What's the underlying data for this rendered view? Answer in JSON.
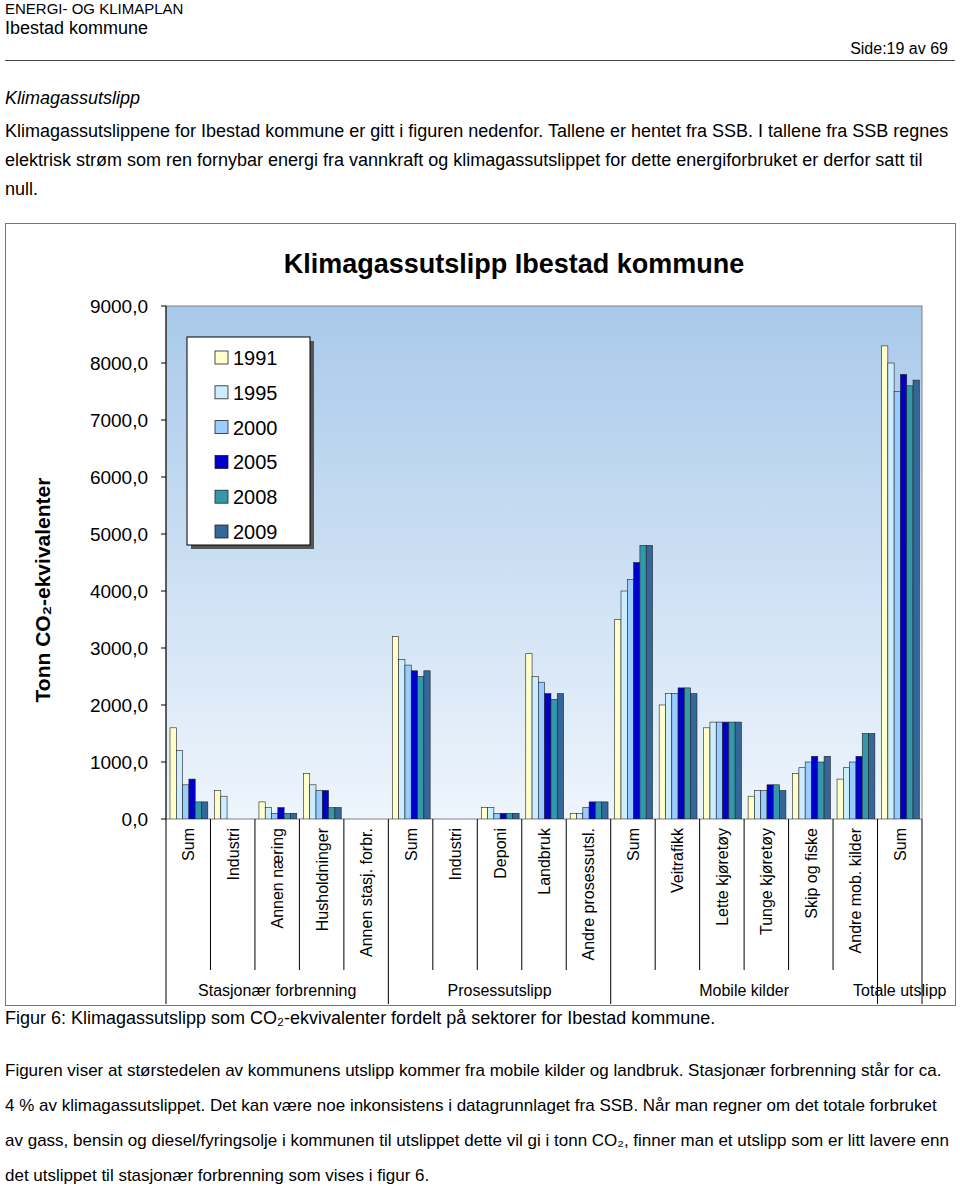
{
  "header": {
    "doc_title": "ENERGI- OG KLIMAPLAN",
    "org": "Ibestad kommune",
    "page": "Side:19 av 69"
  },
  "section": {
    "heading": "Klimagassutslipp",
    "intro": "Klimagassutslippene for Ibestad kommune er gitt i figuren nedenfor. Tallene er hentet fra SSB. I tallene fra SSB regnes elektrisk strøm som ren fornybar energi fra vannkraft og klimagassutslippet for dette energiforbruket er derfor satt til null."
  },
  "chart_data": {
    "type": "bar",
    "title": "Klimagassutslipp Ibestad kommune",
    "y_label": "Tonn CO₂-ekvivalenter",
    "categories": [
      "Sum",
      "Industri",
      "Annen næring",
      "Husholdninger",
      "Annen stasj. forbr.",
      "Sum",
      "Industri",
      "Deponi",
      "Landbruk",
      "Andre prosessutsl.",
      "Sum",
      "Veitrafikk",
      "Lette kjøretøy",
      "Tunge kjøretøy",
      "Skip og fiske",
      "Andre mob. kilder",
      "Sum"
    ],
    "category_groups": [
      {
        "label": "Stasjonær forbrenning",
        "count": 5
      },
      {
        "label": "Prosessutslipp",
        "count": 5
      },
      {
        "label": "Mobile kilder",
        "count": 6
      },
      {
        "label": "Totale utslipp",
        "count": 1
      }
    ],
    "series": [
      {
        "name": "1991",
        "color": "#ffffcc",
        "values": [
          1600,
          500,
          300,
          800,
          0,
          3200,
          0,
          200,
          2900,
          100,
          3500,
          2000,
          1600,
          400,
          800,
          700,
          8300
        ]
      },
      {
        "name": "1995",
        "color": "#ccecff",
        "values": [
          1200,
          400,
          200,
          600,
          0,
          2800,
          0,
          200,
          2500,
          100,
          4000,
          2200,
          1700,
          500,
          900,
          900,
          8000
        ]
      },
      {
        "name": "2000",
        "color": "#99ccff",
        "values": [
          600,
          0,
          100,
          500,
          0,
          2700,
          0,
          100,
          2400,
          200,
          4200,
          2200,
          1700,
          500,
          1000,
          1000,
          7500
        ]
      },
      {
        "name": "2005",
        "color": "#0000cc",
        "values": [
          700,
          0,
          200,
          500,
          0,
          2600,
          0,
          100,
          2200,
          300,
          4500,
          2300,
          1700,
          600,
          1100,
          1100,
          7800
        ]
      },
      {
        "name": "2008",
        "color": "#3399aa",
        "values": [
          300,
          0,
          100,
          200,
          0,
          2500,
          0,
          100,
          2100,
          300,
          4800,
          2300,
          1700,
          600,
          1000,
          1500,
          7600
        ]
      },
      {
        "name": "2009",
        "color": "#336699",
        "values": [
          300,
          0,
          100,
          200,
          0,
          2600,
          0,
          100,
          2200,
          300,
          4800,
          2200,
          1700,
          500,
          1100,
          1500,
          7700
        ]
      }
    ],
    "ylim": [
      0,
      9000
    ],
    "yticks": [
      {
        "value": 0,
        "label": "0,0"
      },
      {
        "value": 1000,
        "label": "1000,0"
      },
      {
        "value": 2000,
        "label": "2000,0"
      },
      {
        "value": 3000,
        "label": "3000,0"
      },
      {
        "value": 4000,
        "label": "4000,0"
      },
      {
        "value": 5000,
        "label": "5000,0"
      },
      {
        "value": 6000,
        "label": "6000,0"
      },
      {
        "value": 7000,
        "label": "7000,0"
      },
      {
        "value": 8000,
        "label": "8000,0"
      },
      {
        "value": 9000,
        "label": "9000,0"
      }
    ],
    "grid": false,
    "legend": "top-left"
  },
  "caption": "Figur 6: Klimagassutslipp som CO₂-ekvivalenter fordelt på sektorer for Ibestad kommune.",
  "body": "Figuren viser at størstedelen av kommunens utslipp kommer fra mobile kilder og landbruk. Stasjonær forbrenning står for ca. 4 % av klimagassutslippet. Det kan være noe inkonsistens i datagrunnlaget fra SSB. Når man regner om det totale forbruket av gass, bensin og diesel/fyringsolje i kommunen til utslippet dette vil gi i tonn CO₂, finner man et utslipp som er litt lavere enn det utslippet til stasjonær forbrenning som vises i figur 6."
}
